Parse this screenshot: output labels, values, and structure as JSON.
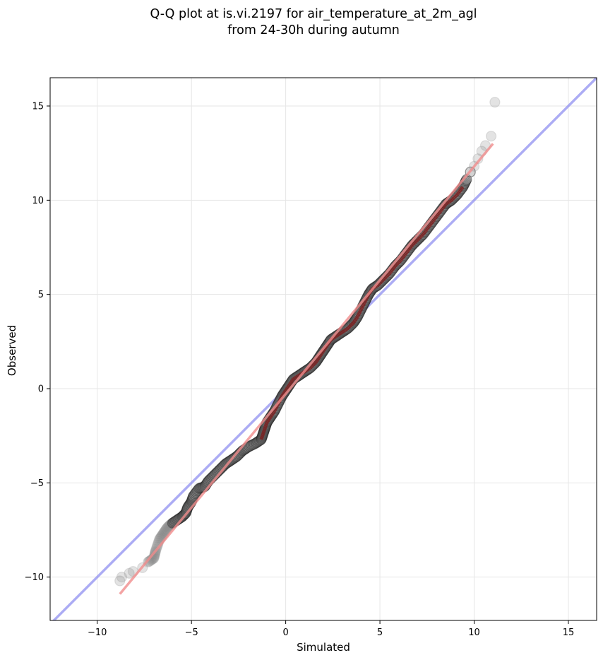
{
  "chart_data": {
    "type": "scatter",
    "title": [
      "Q-Q plot at is.vi.2197 for air_temperature_at_2m_agl",
      "from 24-30h during autumn"
    ],
    "xlabel": "Simulated",
    "ylabel": "Observed",
    "xlim": [
      -12.5,
      16.5
    ],
    "ylim": [
      -12.3,
      16.5
    ],
    "xticks": [
      -10,
      -5,
      0,
      5,
      10,
      15
    ],
    "yticks": [
      -10,
      -5,
      0,
      5,
      10,
      15
    ],
    "xtick_labels": [
      "−10",
      "−5",
      "0",
      "5",
      "10",
      "15"
    ],
    "ytick_labels": [
      "−10",
      "−5",
      "0",
      "5",
      "10",
      "15"
    ],
    "grid": true,
    "points_color": "#808080",
    "identity_line": {
      "color": "#8c8cf0",
      "from": [
        -12.5,
        -12.5
      ],
      "to": [
        16.5,
        16.5
      ]
    },
    "fit_line": {
      "color": "#f08c8c",
      "from": [
        -8.8,
        -10.9
      ],
      "to": [
        11.0,
        13.0
      ]
    },
    "overlay_colors": [
      "#8b0000",
      "#00008b",
      "#4b0082"
    ],
    "quantiles": [
      [
        -8.8,
        -10.2
      ],
      [
        -8.7,
        -10.0
      ],
      [
        -8.3,
        -9.8
      ],
      [
        -8.1,
        -9.7
      ],
      [
        -7.6,
        -9.5
      ],
      [
        -7.3,
        -9.2
      ],
      [
        -7.0,
        -9.0
      ],
      [
        -6.9,
        -8.6
      ],
      [
        -6.7,
        -8.0
      ],
      [
        -6.5,
        -7.7
      ],
      [
        -6.3,
        -7.4
      ],
      [
        -6.1,
        -7.2
      ],
      [
        -5.8,
        -7.0
      ],
      [
        -5.5,
        -6.8
      ],
      [
        -5.3,
        -6.6
      ],
      [
        -5.2,
        -6.3
      ],
      [
        -5.0,
        -6.0
      ],
      [
        -4.9,
        -5.7
      ],
      [
        -4.6,
        -5.3
      ],
      [
        -4.3,
        -5.2
      ],
      [
        -4.1,
        -4.9
      ],
      [
        -3.8,
        -4.6
      ],
      [
        -3.5,
        -4.3
      ],
      [
        -3.2,
        -4.0
      ],
      [
        -2.9,
        -3.8
      ],
      [
        -2.6,
        -3.6
      ],
      [
        -2.3,
        -3.3
      ],
      [
        -2.0,
        -3.1
      ],
      [
        -1.6,
        -2.9
      ],
      [
        -1.3,
        -2.7
      ],
      [
        -1.2,
        -2.4
      ],
      [
        -1.1,
        -2.1
      ],
      [
        -1.0,
        -1.8
      ],
      [
        -0.8,
        -1.5
      ],
      [
        -0.6,
        -1.2
      ],
      [
        -0.4,
        -0.8
      ],
      [
        -0.2,
        -0.4
      ],
      [
        0.0,
        -0.1
      ],
      [
        0.2,
        0.2
      ],
      [
        0.4,
        0.5
      ],
      [
        0.7,
        0.7
      ],
      [
        1.0,
        0.9
      ],
      [
        1.3,
        1.1
      ],
      [
        1.6,
        1.4
      ],
      [
        1.8,
        1.7
      ],
      [
        2.0,
        2.0
      ],
      [
        2.2,
        2.3
      ],
      [
        2.4,
        2.6
      ],
      [
        2.7,
        2.8
      ],
      [
        3.0,
        3.0
      ],
      [
        3.3,
        3.2
      ],
      [
        3.6,
        3.5
      ],
      [
        3.8,
        3.8
      ],
      [
        4.0,
        4.2
      ],
      [
        4.2,
        4.6
      ],
      [
        4.4,
        5.0
      ],
      [
        4.6,
        5.3
      ],
      [
        4.9,
        5.5
      ],
      [
        5.2,
        5.8
      ],
      [
        5.5,
        6.1
      ],
      [
        5.8,
        6.5
      ],
      [
        6.1,
        6.8
      ],
      [
        6.4,
        7.2
      ],
      [
        6.7,
        7.6
      ],
      [
        7.0,
        7.9
      ],
      [
        7.3,
        8.2
      ],
      [
        7.6,
        8.6
      ],
      [
        7.9,
        9.0
      ],
      [
        8.2,
        9.4
      ],
      [
        8.5,
        9.8
      ],
      [
        8.8,
        10.0
      ],
      [
        9.1,
        10.3
      ],
      [
        9.4,
        10.7
      ],
      [
        9.6,
        11.1
      ],
      [
        9.8,
        11.5
      ],
      [
        10.0,
        11.8
      ],
      [
        10.2,
        12.2
      ],
      [
        10.4,
        12.6
      ],
      [
        10.6,
        12.9
      ],
      [
        10.9,
        13.4
      ],
      [
        11.1,
        15.2
      ]
    ]
  }
}
